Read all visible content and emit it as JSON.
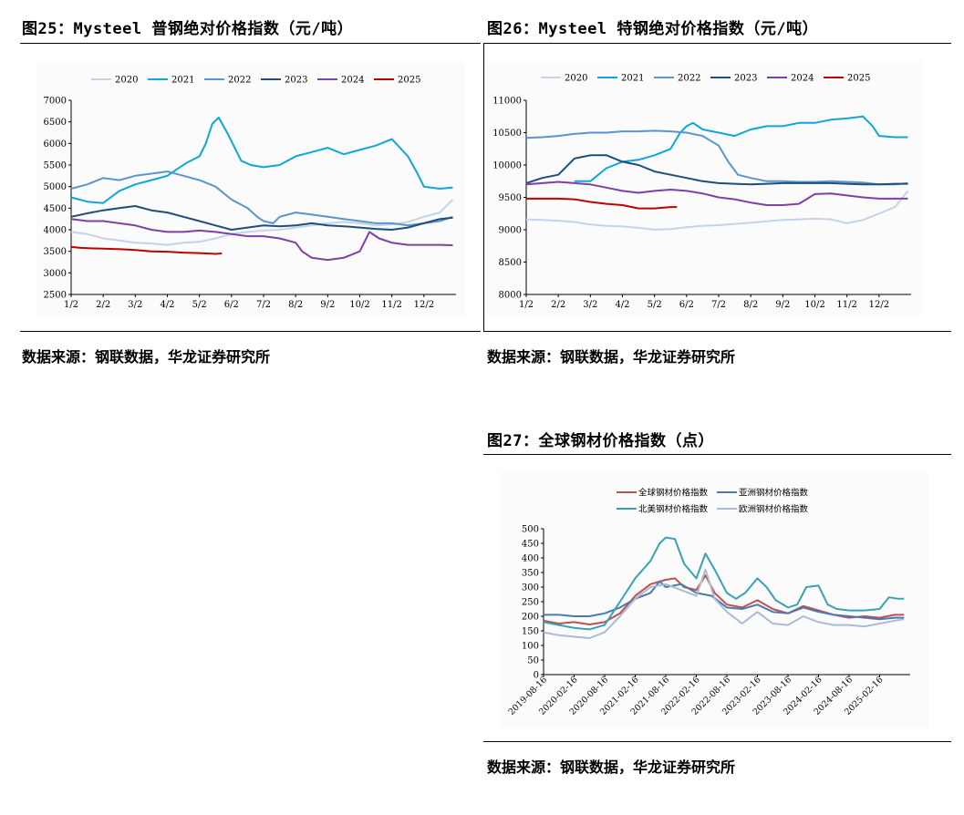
{
  "figures": {
    "fig25": {
      "title": "图25：Mysteel 普钢绝对价格指数（元/吨）",
      "source": "数据来源：钢联数据，华龙证券研究所"
    },
    "fig26": {
      "title": "图26：Mysteel 特钢绝对价格指数（元/吨）",
      "source": "数据来源：钢联数据，华龙证券研究所"
    },
    "fig27": {
      "title": "图27：全球钢材价格指数（点）",
      "source": "数据来源：钢联数据，华龙证券研究所"
    }
  },
  "chart_data": [
    {
      "id": "fig25",
      "type": "line",
      "title": "Mysteel 普钢绝对价格指数（元/吨）",
      "xlabel": "",
      "ylabel": "",
      "categories": [
        "1/2",
        "2/2",
        "3/2",
        "4/2",
        "5/2",
        "6/2",
        "7/2",
        "8/2",
        "9/2",
        "10/2",
        "11/2",
        "12/2"
      ],
      "ylim": [
        2500,
        7000
      ],
      "yticks": [
        2500,
        3000,
        3500,
        4000,
        4500,
        5000,
        5500,
        6000,
        6500,
        7000
      ],
      "legend_position": "top",
      "series": [
        {
          "name": "2020",
          "color": "#c3d4e9",
          "x": [
            0,
            0.5,
            1,
            1.5,
            2,
            2.5,
            3,
            3.5,
            4,
            4.5,
            5,
            5.5,
            6,
            6.5,
            7,
            7.5,
            8,
            8.5,
            9,
            9.5,
            10,
            10.5,
            11,
            11.5,
            11.9
          ],
          "values": [
            3950,
            3900,
            3800,
            3750,
            3700,
            3680,
            3650,
            3700,
            3720,
            3800,
            3900,
            3950,
            3980,
            4000,
            4050,
            4100,
            4150,
            4180,
            4150,
            4100,
            4120,
            4180,
            4300,
            4400,
            4700
          ]
        },
        {
          "name": "2021",
          "color": "#0fa6d9",
          "x": [
            0,
            0.5,
            1,
            1.5,
            2,
            2.5,
            3,
            3.3,
            3.6,
            4,
            4.2,
            4.4,
            4.6,
            4.9,
            5.1,
            5.3,
            5.6,
            6,
            6.5,
            7,
            7.5,
            8,
            8.5,
            9,
            9.5,
            10,
            10.5,
            10.8,
            11,
            11.5,
            11.9
          ],
          "values": [
            4750,
            4650,
            4620,
            4900,
            5050,
            5150,
            5250,
            5400,
            5550,
            5700,
            6000,
            6450,
            6600,
            6200,
            5900,
            5600,
            5500,
            5450,
            5500,
            5700,
            5800,
            5900,
            5750,
            5850,
            5950,
            6100,
            5700,
            5300,
            5000,
            4950,
            4980
          ]
        },
        {
          "name": "2022",
          "color": "#5996cd",
          "x": [
            0,
            0.5,
            1,
            1.5,
            2,
            2.5,
            3,
            3.5,
            4,
            4.5,
            5,
            5.5,
            5.8,
            6,
            6.3,
            6.5,
            7,
            7.5,
            8,
            8.5,
            9,
            9.5,
            10,
            10.5,
            11,
            11.5,
            11.9
          ],
          "values": [
            4950,
            5050,
            5200,
            5150,
            5250,
            5300,
            5350,
            5250,
            5150,
            5000,
            4700,
            4500,
            4300,
            4200,
            4150,
            4300,
            4400,
            4350,
            4300,
            4250,
            4200,
            4150,
            4150,
            4100,
            4150,
            4200,
            4300
          ]
        },
        {
          "name": "2023",
          "color": "#1f4e79",
          "x": [
            0,
            0.5,
            1,
            1.5,
            2,
            2.5,
            3,
            3.5,
            4,
            4.5,
            5,
            5.5,
            6,
            6.5,
            7,
            7.5,
            8,
            8.5,
            9,
            9.5,
            10,
            10.5,
            11,
            11.5,
            11.9
          ],
          "values": [
            4300,
            4380,
            4450,
            4500,
            4550,
            4450,
            4400,
            4300,
            4200,
            4100,
            4000,
            4050,
            4100,
            4080,
            4100,
            4150,
            4100,
            4080,
            4050,
            4020,
            4000,
            4050,
            4150,
            4250,
            4280
          ]
        },
        {
          "name": "2024",
          "color": "#7f3fa8",
          "x": [
            0,
            0.5,
            1,
            1.5,
            2,
            2.5,
            3,
            3.5,
            4,
            4.5,
            5,
            5.5,
            6,
            6.5,
            7,
            7.2,
            7.5,
            8,
            8.5,
            9,
            9.3,
            9.6,
            10,
            10.5,
            11,
            11.5,
            11.9
          ],
          "values": [
            4250,
            4200,
            4200,
            4150,
            4100,
            4000,
            3950,
            3950,
            3980,
            3950,
            3900,
            3850,
            3850,
            3800,
            3700,
            3500,
            3350,
            3300,
            3350,
            3500,
            3950,
            3800,
            3700,
            3650,
            3650,
            3650,
            3640
          ]
        },
        {
          "name": "2025",
          "color": "#c00000",
          "x": [
            0,
            0.3,
            0.6,
            1,
            1.5,
            2,
            2.5,
            3,
            3.5,
            4,
            4.5,
            4.7
          ],
          "values": [
            3600,
            3580,
            3570,
            3560,
            3550,
            3530,
            3500,
            3490,
            3470,
            3460,
            3440,
            3450
          ]
        }
      ]
    },
    {
      "id": "fig26",
      "type": "line",
      "title": "Mysteel 特钢绝对价格指数（元/吨）",
      "xlabel": "",
      "ylabel": "",
      "categories": [
        "1/2",
        "2/2",
        "3/2",
        "4/2",
        "5/2",
        "6/2",
        "7/2",
        "8/2",
        "9/2",
        "10/2",
        "11/2",
        "12/2"
      ],
      "ylim": [
        8000,
        11000
      ],
      "yticks": [
        8000,
        8500,
        9000,
        9500,
        10000,
        10500,
        11000
      ],
      "legend_position": "top",
      "series": [
        {
          "name": "2020",
          "color": "#c3d4e9",
          "x": [
            0,
            0.5,
            1,
            1.5,
            2,
            2.5,
            3,
            3.5,
            4,
            4.5,
            5,
            5.5,
            6,
            6.5,
            7,
            7.5,
            8,
            8.5,
            9,
            9.5,
            10,
            10.5,
            11,
            11.5,
            11.9
          ],
          "values": [
            9160,
            9150,
            9140,
            9120,
            9080,
            9060,
            9050,
            9030,
            9000,
            9010,
            9040,
            9060,
            9070,
            9090,
            9110,
            9130,
            9150,
            9160,
            9170,
            9160,
            9100,
            9150,
            9250,
            9350,
            9600
          ]
        },
        {
          "name": "2021",
          "color": "#0fa6d9",
          "x": [
            1.5,
            2,
            2.5,
            3,
            3.5,
            4,
            4.5,
            4.8,
            5,
            5.2,
            5.5,
            6,
            6.5,
            7,
            7.5,
            8,
            8.5,
            9,
            9.5,
            10,
            10.5,
            10.8,
            11,
            11.5,
            11.9
          ],
          "values": [
            9750,
            9750,
            9950,
            10050,
            10080,
            10150,
            10250,
            10500,
            10600,
            10650,
            10550,
            10500,
            10450,
            10550,
            10600,
            10600,
            10650,
            10650,
            10700,
            10720,
            10750,
            10600,
            10450,
            10430,
            10430
          ]
        },
        {
          "name": "2022",
          "color": "#5996cd",
          "x": [
            0,
            0.5,
            1,
            1.5,
            2,
            2.5,
            3,
            3.5,
            4,
            4.5,
            5,
            5.5,
            6,
            6.3,
            6.6,
            7,
            7.5,
            8,
            8.5,
            9,
            9.5,
            10,
            10.5,
            11,
            11.5,
            11.9
          ],
          "values": [
            10420,
            10430,
            10450,
            10480,
            10500,
            10500,
            10520,
            10520,
            10530,
            10520,
            10500,
            10450,
            10300,
            10050,
            9850,
            9800,
            9750,
            9750,
            9740,
            9740,
            9750,
            9740,
            9730,
            9700,
            9700,
            9720
          ]
        },
        {
          "name": "2023",
          "color": "#1f4e79",
          "x": [
            0,
            0.5,
            1,
            1.5,
            2,
            2.5,
            3,
            3.5,
            4,
            4.5,
            5,
            5.5,
            6,
            6.5,
            7,
            7.5,
            8,
            8.5,
            9,
            9.5,
            10,
            10.5,
            11,
            11.5,
            11.9
          ],
          "values": [
            9720,
            9800,
            9850,
            10100,
            10150,
            10150,
            10050,
            10000,
            9900,
            9850,
            9800,
            9750,
            9720,
            9710,
            9700,
            9710,
            9720,
            9720,
            9720,
            9720,
            9710,
            9700,
            9700,
            9710,
            9710
          ]
        },
        {
          "name": "2024",
          "color": "#7f3fa8",
          "x": [
            0,
            0.5,
            1,
            1.5,
            2,
            2.5,
            3,
            3.5,
            4,
            4.5,
            5,
            5.5,
            6,
            6.5,
            7,
            7.5,
            8,
            8.5,
            9,
            9.5,
            10,
            10.5,
            11,
            11.5,
            11.9
          ],
          "values": [
            9700,
            9720,
            9740,
            9720,
            9700,
            9650,
            9600,
            9570,
            9600,
            9620,
            9600,
            9560,
            9500,
            9470,
            9420,
            9380,
            9380,
            9400,
            9550,
            9560,
            9530,
            9500,
            9480,
            9480,
            9480
          ]
        },
        {
          "name": "2025",
          "color": "#c00000",
          "x": [
            0,
            0.5,
            1,
            1.5,
            2,
            2.5,
            3,
            3.5,
            4,
            4.5,
            4.7
          ],
          "values": [
            9480,
            9480,
            9480,
            9470,
            9430,
            9400,
            9380,
            9330,
            9330,
            9350,
            9350
          ]
        }
      ]
    },
    {
      "id": "fig27",
      "type": "line",
      "title": "全球钢材价格指数（点）",
      "xlabel": "",
      "ylabel": "",
      "categories": [
        "2019-08-16",
        "2020-02-16",
        "2020-08-16",
        "2021-02-16",
        "2021-08-16",
        "2022-02-16",
        "2022-08-16",
        "2023-02-16",
        "2023-08-16",
        "2024-02-16",
        "2024-08-16",
        "2025-02-16"
      ],
      "ylim": [
        0,
        500
      ],
      "yticks": [
        0,
        50,
        100,
        150,
        200,
        250,
        300,
        350,
        400,
        450,
        500
      ],
      "legend_position": "top",
      "series": [
        {
          "name": "全球钢材价格指数",
          "color": "#c0504d",
          "x": [
            0,
            0.5,
            1,
            1.5,
            2,
            2.5,
            3,
            3.5,
            4,
            4.3,
            4.6,
            5,
            5.3,
            5.6,
            6,
            6.5,
            7,
            7.5,
            8,
            8.5,
            9,
            9.5,
            10,
            10.5,
            11,
            11.5,
            11.8
          ],
          "values": [
            185,
            175,
            180,
            172,
            180,
            210,
            270,
            310,
            325,
            330,
            300,
            290,
            340,
            280,
            240,
            230,
            255,
            225,
            210,
            235,
            220,
            205,
            195,
            200,
            195,
            205,
            205
          ]
        },
        {
          "name": "亚洲钢材价格指数",
          "color": "#4a7ab0",
          "x": [
            0,
            0.5,
            1,
            1.5,
            2,
            2.5,
            3,
            3.5,
            3.8,
            4,
            4.5,
            5,
            5.5,
            6,
            6.5,
            7,
            7.5,
            8,
            8.5,
            9,
            9.5,
            10,
            10.5,
            11,
            11.5,
            11.8
          ],
          "values": [
            205,
            205,
            200,
            200,
            210,
            230,
            260,
            280,
            320,
            300,
            310,
            280,
            270,
            230,
            225,
            240,
            215,
            210,
            230,
            215,
            205,
            200,
            195,
            190,
            195,
            195
          ]
        },
        {
          "name": "北美钢材价格指数",
          "color": "#35a3b4",
          "x": [
            0,
            0.5,
            1,
            1.5,
            2,
            2.5,
            3,
            3.5,
            3.8,
            4,
            4.3,
            4.6,
            5,
            5.3,
            5.6,
            6,
            6.3,
            6.6,
            7,
            7.3,
            7.6,
            8,
            8.3,
            8.6,
            9,
            9.3,
            9.6,
            10,
            10.5,
            11,
            11.3,
            11.6,
            11.8
          ],
          "values": [
            180,
            170,
            160,
            155,
            170,
            250,
            330,
            390,
            450,
            470,
            465,
            380,
            330,
            415,
            360,
            280,
            260,
            280,
            330,
            300,
            255,
            230,
            240,
            300,
            305,
            240,
            225,
            220,
            220,
            225,
            265,
            260,
            260
          ]
        },
        {
          "name": "欧洲钢材价格指数",
          "color": "#aabbd6",
          "x": [
            0,
            0.5,
            1,
            1.5,
            2,
            2.5,
            3,
            3.5,
            4,
            4.5,
            5,
            5.3,
            5.6,
            6,
            6.5,
            7,
            7.5,
            8,
            8.5,
            9,
            9.5,
            10,
            10.5,
            11,
            11.5,
            11.8
          ],
          "values": [
            145,
            135,
            130,
            125,
            145,
            200,
            260,
            300,
            310,
            290,
            270,
            360,
            260,
            215,
            175,
            215,
            175,
            170,
            200,
            180,
            170,
            170,
            165,
            175,
            185,
            190
          ]
        }
      ]
    }
  ]
}
